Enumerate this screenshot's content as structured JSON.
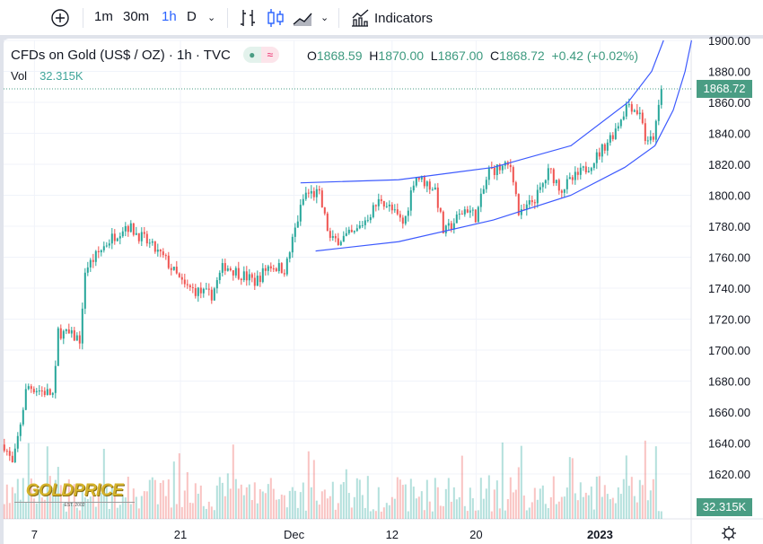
{
  "toolbar": {
    "add_symbol": "add-symbol",
    "intervals": [
      "1m",
      "30m",
      "1h",
      "D"
    ],
    "active_interval": "1h",
    "indicators_label": "Indicators"
  },
  "legend": {
    "title": "CFDs on Gold (US$ / OZ) · 1h · TVC",
    "o_label": "O",
    "o": "1868.59",
    "h_label": "H",
    "h": "1870.00",
    "l_label": "L",
    "l": "1867.00",
    "c_label": "C",
    "c": "1868.72",
    "change": "+0.42 (+0.02%)",
    "vol_label": "Vol",
    "vol": "32.315K"
  },
  "price_badge": "1868.72",
  "volume_badge": "32.315K",
  "watermark": "GOLDPRICE EST. 2002",
  "colors": {
    "up": "#26a69a",
    "down": "#ef5350",
    "accent": "#2962ff",
    "channel": "#3d5afe",
    "badge": "#4a9d84"
  },
  "chart_data": {
    "type": "candlestick",
    "y_ticks": [
      "1900.00",
      "1880.00",
      "1860.00",
      "1840.00",
      "1820.00",
      "1800.00",
      "1780.00",
      "1760.00",
      "1740.00",
      "1720.00",
      "1700.00",
      "1680.00",
      "1660.00",
      "1640.00",
      "1620.00"
    ],
    "ylim": [
      1620,
      1900
    ],
    "x_ticks": [
      {
        "label": "7",
        "t": 3.2
      },
      {
        "label": "21",
        "t": 16.75
      },
      {
        "label": "Dec",
        "t": 27.3
      },
      {
        "label": "12",
        "t": 36.4
      },
      {
        "label": "20",
        "t": 44.2
      },
      {
        "label": "2023",
        "t": 55.7,
        "bold": true
      }
    ],
    "price_path": [
      [
        0.4,
        1639
      ],
      [
        1.2,
        1625
      ],
      [
        2.5,
        1677
      ],
      [
        5,
        1671
      ],
      [
        5.4,
        1712
      ],
      [
        7.5,
        1707
      ],
      [
        7.9,
        1752
      ],
      [
        10,
        1770
      ],
      [
        11.7,
        1781
      ],
      [
        13.3,
        1772
      ],
      [
        15.4,
        1758
      ],
      [
        17.1,
        1741
      ],
      [
        19.6,
        1735
      ],
      [
        20.8,
        1755
      ],
      [
        23.7,
        1744
      ],
      [
        25,
        1755
      ],
      [
        26.5,
        1752
      ],
      [
        27.5,
        1781
      ],
      [
        28.3,
        1801
      ],
      [
        29.6,
        1801
      ],
      [
        30.7,
        1770
      ],
      [
        32.9,
        1775
      ],
      [
        35.4,
        1798
      ],
      [
        37.5,
        1781
      ],
      [
        38.5,
        1813
      ],
      [
        40.4,
        1804
      ],
      [
        41.2,
        1775
      ],
      [
        43.3,
        1792
      ],
      [
        44.2,
        1786
      ],
      [
        45.4,
        1816
      ],
      [
        47.5,
        1819
      ],
      [
        48.2,
        1786
      ],
      [
        50,
        1801
      ],
      [
        51,
        1816
      ],
      [
        52.1,
        1804
      ],
      [
        54.2,
        1816
      ],
      [
        55.4,
        1825
      ],
      [
        57.1,
        1842
      ],
      [
        58.3,
        1860
      ],
      [
        59.6,
        1851
      ],
      [
        60,
        1831
      ],
      [
        60.8,
        1840
      ],
      [
        61.4,
        1868.72
      ]
    ],
    "channel_upper": [
      [
        27.9,
        1808
      ],
      [
        37,
        1810
      ],
      [
        45.8,
        1818
      ],
      [
        53,
        1832
      ],
      [
        58.3,
        1860
      ],
      [
        60.5,
        1880
      ],
      [
        61.6,
        1900
      ]
    ],
    "channel_lower": [
      [
        29.3,
        1764
      ],
      [
        37,
        1770
      ],
      [
        45.8,
        1784
      ],
      [
        53,
        1800
      ],
      [
        58,
        1818
      ],
      [
        60.8,
        1832
      ],
      [
        62.5,
        1855
      ],
      [
        63.6,
        1880
      ],
      [
        64.2,
        1900
      ]
    ],
    "last_price": 1868.72
  }
}
